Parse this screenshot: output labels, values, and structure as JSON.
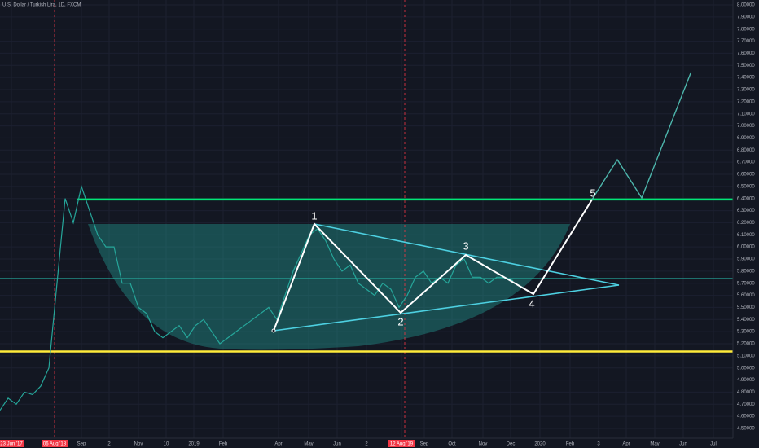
{
  "chart_data": {
    "type": "line",
    "title": "U.S. Dollar / Turkish Lira, 1D, FXCM",
    "x_labels": [
      "23 Jun '17",
      "06 Aug '18",
      "Sep",
      "2",
      "Nov",
      "10",
      "2019",
      "Feb",
      "Apr",
      "May",
      "Jun",
      "2",
      "12 Aug '19",
      "Sep",
      "Oct",
      "Nov",
      "Dec",
      "2020",
      "Feb",
      "3",
      "Apr",
      "May",
      "Jun",
      "Jul"
    ],
    "series": [
      {
        "name": "USD/TRY",
        "color": "#26a69a",
        "values": [
          4.65,
          4.75,
          4.7,
          4.8,
          4.78,
          4.85,
          5.0,
          5.7,
          6.4,
          6.2,
          6.5,
          6.3,
          6.1,
          6.0,
          6.0,
          5.7,
          5.7,
          5.5,
          5.45,
          5.3,
          5.25,
          5.3,
          5.35,
          5.25,
          5.35,
          5.4,
          5.3,
          5.2,
          5.25,
          5.3,
          5.35,
          5.4,
          5.45,
          5.5,
          5.4,
          5.6,
          5.8,
          5.95,
          6.1,
          6.15,
          6.05,
          5.9,
          5.8,
          5.85,
          5.7,
          5.65,
          5.6,
          5.7,
          5.65,
          5.5,
          5.6,
          5.75,
          5.8,
          5.7,
          5.75,
          5.7,
          5.85,
          5.9,
          5.75,
          5.75,
          5.7,
          5.75,
          5.75,
          5.72
        ]
      }
    ],
    "levels": [
      {
        "value": 6.39216,
        "color": "#00e676"
      },
      {
        "value": 5.74051,
        "color": "#26a69a"
      },
      {
        "value": 5.13612,
        "color": "#ffeb3b"
      }
    ],
    "wave_labels": [
      "1",
      "2",
      "3",
      "4",
      "5"
    ],
    "ylim": [
      4.45,
      8.05
    ],
    "yticks": [
      {
        "value": 4.5,
        "label": "4.50000"
      },
      {
        "value": 4.6,
        "label": "4.60000"
      },
      {
        "value": 4.7,
        "label": "4.70000"
      },
      {
        "value": 4.8,
        "label": "4.80000"
      },
      {
        "value": 4.9,
        "label": "4.90000"
      },
      {
        "value": 5,
        "label": "5.00000"
      },
      {
        "value": 5.1,
        "label": "5.10000"
      },
      {
        "value": 5.2,
        "label": "5.20000"
      },
      {
        "value": 5.3,
        "label": "5.30000"
      },
      {
        "value": 5.4,
        "label": "5.40000"
      },
      {
        "value": 5.5,
        "label": "5.50000"
      },
      {
        "value": 5.6,
        "label": "5.60000"
      },
      {
        "value": 5.7,
        "label": "5.70000"
      },
      {
        "value": 5.8,
        "label": "5.80000"
      },
      {
        "value": 5.9,
        "label": "5.90000"
      },
      {
        "value": 6,
        "label": "6.00000"
      },
      {
        "value": 6.1,
        "label": "6.10000"
      },
      {
        "value": 6.2,
        "label": "6.20000"
      },
      {
        "value": 6.3,
        "label": "6.30000"
      },
      {
        "value": 6.4,
        "label": "6.40000"
      },
      {
        "value": 6.5,
        "label": "6.50000"
      },
      {
        "value": 6.6,
        "label": "6.60000"
      },
      {
        "value": 6.7,
        "label": "6.70000"
      },
      {
        "value": 6.8,
        "label": "6.80000"
      },
      {
        "value": 6.9,
        "label": "6.90000"
      },
      {
        "value": 7,
        "label": "7.00000"
      },
      {
        "value": 7.1,
        "label": "7.10000"
      },
      {
        "value": 7.2,
        "label": "7.20000"
      },
      {
        "value": 7.3,
        "label": "7.30000"
      },
      {
        "value": 7.4,
        "label": "7.40000"
      },
      {
        "value": 7.5,
        "label": "7.50000"
      },
      {
        "value": 7.6,
        "label": "7.60000"
      },
      {
        "value": 7.7,
        "label": "7.70000"
      },
      {
        "value": 7.8,
        "label": "7.80000"
      },
      {
        "value": 7.9,
        "label": "7.90000"
      },
      {
        "value": 8,
        "label": "8.00000"
      }
    ],
    "grid": true
  }
}
